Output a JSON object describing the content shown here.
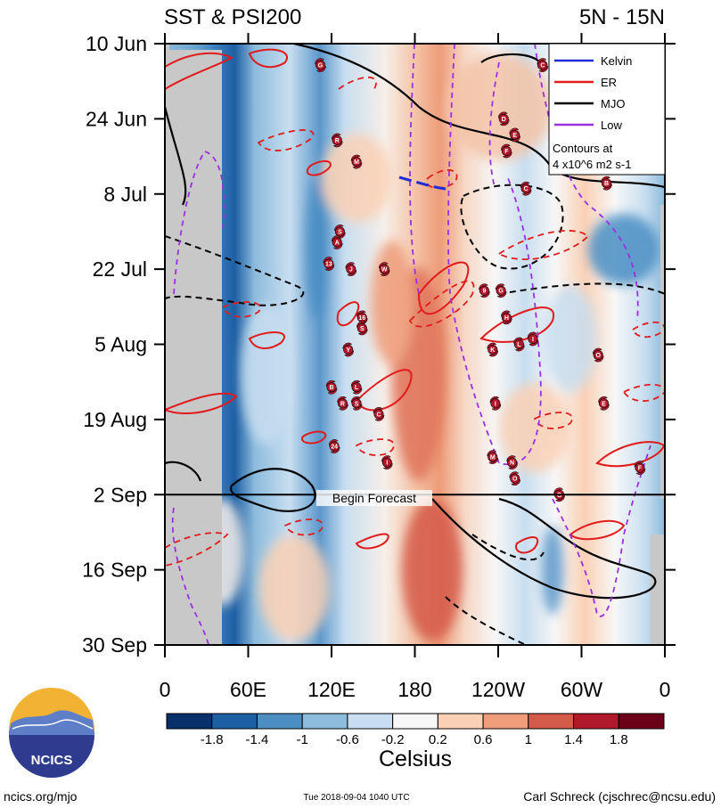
{
  "chart_data": {
    "type": "heatmap",
    "title_left": "SST & PSI200",
    "title_right": "5N - 15N",
    "x_tick_labels": [
      "0",
      "60E",
      "120E",
      "180",
      "120W",
      "60W",
      "0"
    ],
    "x_ticks_deg_east": [
      0,
      60,
      120,
      180,
      240,
      300,
      360
    ],
    "xlim_deg_east": [
      0,
      360
    ],
    "y_tick_labels": [
      "10 Jun",
      "24 Jun",
      "8 Jul",
      "22 Jul",
      "5 Aug",
      "19 Aug",
      "2 Sep",
      "16 Sep",
      "30 Sep"
    ],
    "y_tick_days": [
      0,
      14,
      28,
      42,
      56,
      70,
      84,
      98,
      112
    ],
    "ylim_days": [
      0,
      112
    ],
    "forecast_start_day": 84,
    "forecast_label": "Begin Forecast",
    "colorbar": {
      "label": "Celsius",
      "tick_labels": [
        "-1.8",
        "-1.4",
        "-1",
        "-0.6",
        "-0.2",
        "0.2",
        "0.6",
        "1",
        "1.4",
        "1.8"
      ],
      "colors": [
        "#08306b",
        "#1d5fa3",
        "#4a8ec4",
        "#8cbbdc",
        "#c8def0",
        "#f7f7f7",
        "#fbd1b6",
        "#ee9c79",
        "#d45a4a",
        "#b2182b",
        "#6b0019"
      ]
    },
    "legend": {
      "entries": [
        {
          "name": "Kelvin",
          "color": "#1f2bd8"
        },
        {
          "name": "ER",
          "color": "#e11b1b"
        },
        {
          "name": "MJO",
          "color": "#000000"
        },
        {
          "name": "Low",
          "color": "#9b30e0"
        }
      ],
      "contour_note_1": "Contours at",
      "contour_note_2": "4 x10^6 m2 s-1"
    },
    "storms": [
      {
        "lon": 112,
        "day": 4,
        "label": "G"
      },
      {
        "lon": 272,
        "day": 4,
        "label": "C"
      },
      {
        "lon": 124,
        "day": 18,
        "label": "R"
      },
      {
        "lon": 244,
        "day": 14,
        "label": "D"
      },
      {
        "lon": 252,
        "day": 17,
        "label": "E"
      },
      {
        "lon": 246,
        "day": 20,
        "label": "F"
      },
      {
        "lon": 138,
        "day": 22,
        "label": "M"
      },
      {
        "lon": 260,
        "day": 27,
        "label": "C"
      },
      {
        "lon": 318,
        "day": 26,
        "label": "B"
      },
      {
        "lon": 126,
        "day": 35,
        "label": "S"
      },
      {
        "lon": 124,
        "day": 37,
        "label": "A"
      },
      {
        "lon": 118,
        "day": 41,
        "label": "13"
      },
      {
        "lon": 134,
        "day": 42,
        "label": "J"
      },
      {
        "lon": 158,
        "day": 42,
        "label": "W"
      },
      {
        "lon": 230,
        "day": 46,
        "label": "9"
      },
      {
        "lon": 242,
        "day": 46,
        "label": "G"
      },
      {
        "lon": 142,
        "day": 51,
        "label": "16"
      },
      {
        "lon": 142,
        "day": 53,
        "label": "S"
      },
      {
        "lon": 246,
        "day": 51,
        "label": "H"
      },
      {
        "lon": 132,
        "day": 57,
        "label": "Y"
      },
      {
        "lon": 236,
        "day": 57,
        "label": "K"
      },
      {
        "lon": 255,
        "day": 56,
        "label": "L"
      },
      {
        "lon": 265,
        "day": 55,
        "label": "I"
      },
      {
        "lon": 312,
        "day": 58,
        "label": "O"
      },
      {
        "lon": 120,
        "day": 64,
        "label": "B"
      },
      {
        "lon": 128,
        "day": 67,
        "label": "R"
      },
      {
        "lon": 138,
        "day": 64,
        "label": "L"
      },
      {
        "lon": 138,
        "day": 67,
        "label": "S"
      },
      {
        "lon": 154,
        "day": 69,
        "label": "C"
      },
      {
        "lon": 238,
        "day": 67,
        "label": "I"
      },
      {
        "lon": 316,
        "day": 67,
        "label": "E"
      },
      {
        "lon": 122,
        "day": 75,
        "label": "24"
      },
      {
        "lon": 160,
        "day": 78,
        "label": "I"
      },
      {
        "lon": 236,
        "day": 77,
        "label": "M"
      },
      {
        "lon": 250,
        "day": 78,
        "label": "N"
      },
      {
        "lon": 252,
        "day": 81,
        "label": "O"
      },
      {
        "lon": 284,
        "day": 84,
        "label": "G"
      },
      {
        "lon": 342,
        "day": 79,
        "label": "F"
      }
    ]
  },
  "footer": {
    "logo_text": "NCICS",
    "url": "ncics.org/mjo",
    "timestamp": "Tue 2018-09-04 1040 UTC",
    "author": "Carl Schreck (cjschrec@ncsu.edu)"
  }
}
